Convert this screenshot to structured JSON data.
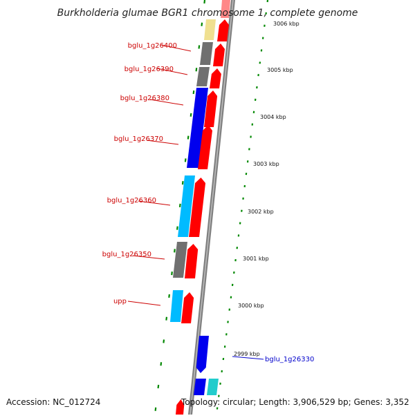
{
  "title": "Burkholderia glumae BGR1 chromosome 1, complete genome",
  "footer": {
    "accession": "Accession: NC_012724",
    "topology": "Topology: circular; Length: 3,906,529 bp; Genes: 3,352"
  },
  "colors": {
    "red": "#ff0000",
    "blue": "#0000ee",
    "cyan": "#00bbff",
    "gray": "#707070",
    "yellow": "#f0e090",
    "teal": "#22cccc",
    "green": "#008800",
    "axis": "#808080",
    "label_red": "#cc0000",
    "label_blue": "#0000cc"
  },
  "kbp_ticks": [
    "3006 kbp",
    "3005 kbp",
    "3004 kbp",
    "3003 kbp",
    "3002 kbp",
    "3001 kbp",
    "3000 kbp",
    "2999 kbp"
  ],
  "gene_labels": [
    {
      "text": "bglu_1g26400",
      "color": "label_red"
    },
    {
      "text": "bglu_1g26390",
      "color": "label_red"
    },
    {
      "text": "bglu_1g26380",
      "color": "label_red"
    },
    {
      "text": "bglu_1g26370",
      "color": "label_red"
    },
    {
      "text": "bglu_1g26360",
      "color": "label_red"
    },
    {
      "text": "bglu_1g26350",
      "color": "label_red"
    },
    {
      "text": "upp",
      "color": "label_red"
    },
    {
      "text": "bglu_1g26330",
      "color": "label_blue"
    }
  ]
}
